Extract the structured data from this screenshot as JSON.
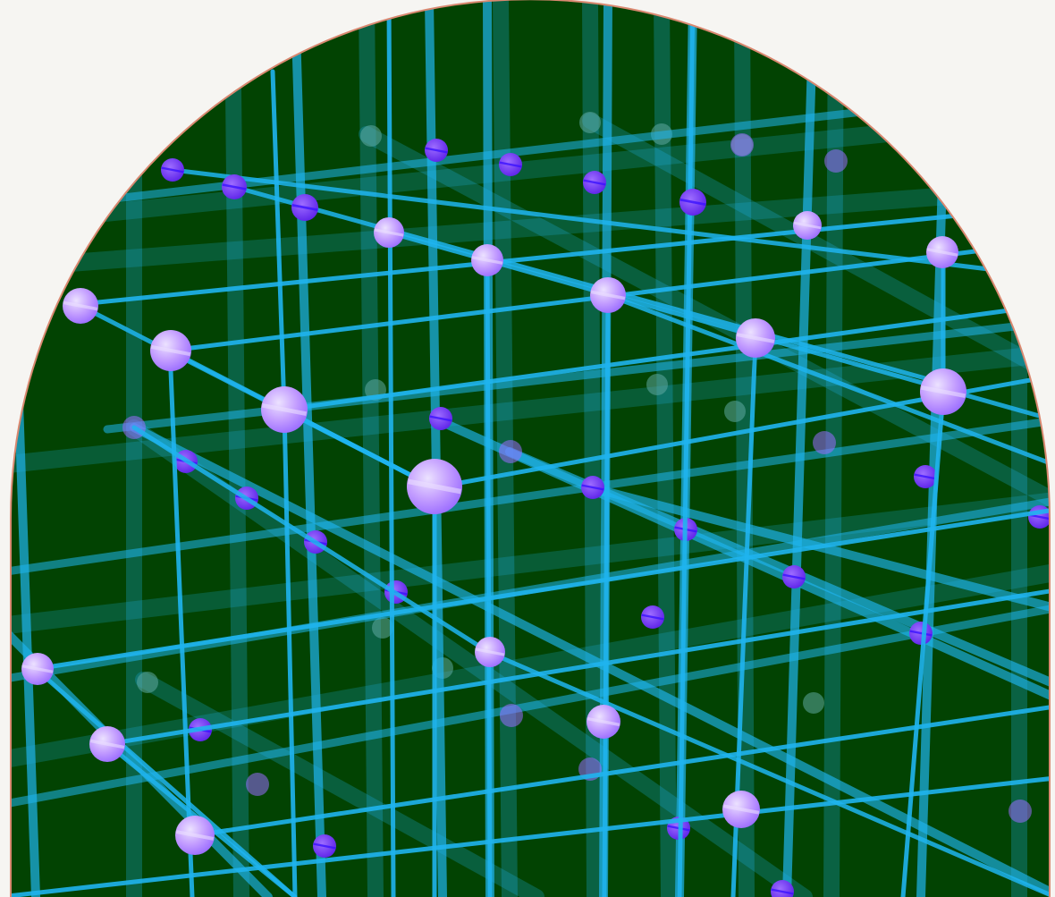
{
  "scene": {
    "kind": "3d-lattice-view",
    "background_color": "#f6f5f2",
    "viewport_color": "#024302",
    "viewport_border_color": "#d98870",
    "rod_color": "#1fb4ee",
    "node_color_light": "#c9a8ff",
    "node_color_mid": "#9a6cff",
    "node_color_dark": "#6a2cf0",
    "node_color_core": "#3a12ff",
    "node_sheen_color": "#ece2ff"
  }
}
